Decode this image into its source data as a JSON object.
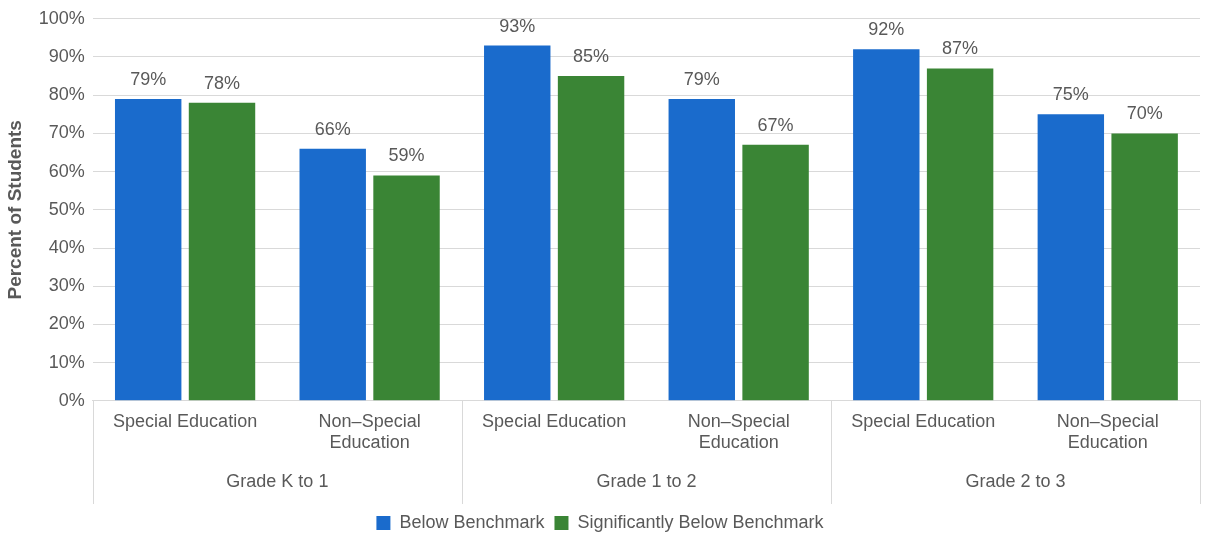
{
  "chart_data": {
    "type": "bar",
    "ylabel": "Percent of Students",
    "categories": [
      "Special Education",
      "Non–Special Education",
      "Special Education",
      "Non–Special Education",
      "Special Education",
      "Non–Special Education"
    ],
    "annotations": [
      "Grade K to 1",
      "Grade 1 to 2",
      "Grade 2 to 3"
    ],
    "series": [
      {
        "name": "Below Benchmark",
        "color": "#1a6bcc",
        "values": [
          79,
          66,
          93,
          79,
          92,
          75
        ],
        "value_labels": [
          "79%",
          "66%",
          "93%",
          "79%",
          "92%",
          "75%"
        ]
      },
      {
        "name": "Significantly Below Benchmark",
        "color": "#3a8535",
        "values": [
          78,
          59,
          85,
          67,
          87,
          70
        ],
        "value_labels": [
          "78%",
          "59%",
          "85%",
          "67%",
          "87%",
          "70%"
        ]
      }
    ],
    "ylim": [
      0,
      100
    ],
    "yticks": [
      {
        "value": 0,
        "label": "0%"
      },
      {
        "value": 10,
        "label": "10%"
      },
      {
        "value": 20,
        "label": "20%"
      },
      {
        "value": 30,
        "label": "30%"
      },
      {
        "value": 40,
        "label": "40%"
      },
      {
        "value": 50,
        "label": "50%"
      },
      {
        "value": 60,
        "label": "60%"
      },
      {
        "value": 70,
        "label": "70%"
      },
      {
        "value": 80,
        "label": "80%"
      },
      {
        "value": 90,
        "label": "90%"
      },
      {
        "value": 100,
        "label": "100%"
      }
    ],
    "grid": "y",
    "legend": "bottom"
  }
}
